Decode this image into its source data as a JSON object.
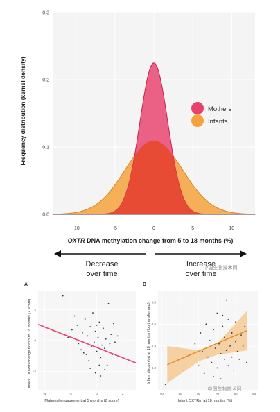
{
  "chart_data": [
    {
      "type": "area",
      "xlabel_italic": "OXTR",
      "xlabel_rest": " DNA methylation change from 5 to 18 months (%)",
      "ylabel": "Frequency distribution (kernel density)",
      "xlim": [
        -13,
        13
      ],
      "ylim": [
        0,
        0.3
      ],
      "x_ticks": [
        -10,
        -5,
        0,
        5,
        10
      ],
      "y_ticks": [
        0.0,
        0.1,
        0.2,
        0.3
      ],
      "y_tick_labels": [
        "0.0",
        "0.1",
        "0.2",
        "0.3"
      ],
      "legend_position": "right",
      "series": [
        {
          "name": "Mothers",
          "mean": 0,
          "sd": 1.8,
          "peak": 0.225,
          "color": "#e8416c"
        },
        {
          "name": "Infants",
          "mean": 0,
          "sd": 3.7,
          "peak": 0.109,
          "color": "#f5a23c"
        }
      ],
      "arrows": {
        "left_line1": "Decrease",
        "left_line2": "over time",
        "right_line1": "Increase",
        "right_line2": "over time"
      }
    },
    {
      "type": "scatter",
      "panel_label": "A",
      "xlabel": "Maternal engagement at 5 months (Z score)",
      "ylabel": "Infant OXTRm change from 5 to 18 months (Z score)",
      "xlim": [
        -4.5,
        3
      ],
      "ylim": [
        -3.2,
        3.2
      ],
      "x_ticks": [
        -4,
        -2,
        0,
        2
      ],
      "y_ticks": [
        -2,
        0,
        2
      ],
      "fit_line": {
        "x": [
          -4.5,
          3
        ],
        "y": [
          1.05,
          -1.45
        ],
        "color": "#e8416c"
      },
      "points": [
        [
          -2.6,
          2.9
        ],
        [
          -1.9,
          0.7
        ],
        [
          -1.7,
          1.6
        ],
        [
          -1.5,
          1.0
        ],
        [
          -1.4,
          -0.2
        ],
        [
          -1.2,
          -0.6
        ],
        [
          -1.1,
          0.5
        ],
        [
          -0.9,
          1.4
        ],
        [
          -0.8,
          -0.9
        ],
        [
          -0.7,
          0.3
        ],
        [
          -0.6,
          -1.3
        ],
        [
          -0.5,
          0.9
        ],
        [
          -0.4,
          -0.4
        ],
        [
          -0.3,
          1.8
        ],
        [
          -0.2,
          -0.1
        ],
        [
          -0.1,
          0.6
        ],
        [
          0.0,
          -0.7
        ],
        [
          0.1,
          0.2
        ],
        [
          0.2,
          1.2
        ],
        [
          0.3,
          -1.1
        ],
        [
          0.4,
          -0.3
        ],
        [
          0.5,
          0.8
        ],
        [
          0.6,
          -0.5
        ],
        [
          0.7,
          0.1
        ],
        [
          0.8,
          -1.6
        ],
        [
          0.9,
          2.4
        ],
        [
          1.0,
          -0.2
        ],
        [
          1.1,
          0.4
        ],
        [
          1.2,
          -0.9
        ],
        [
          1.3,
          1.1
        ],
        [
          1.4,
          -0.1
        ],
        [
          -0.1,
          -2.1
        ],
        [
          0.3,
          -2.3
        ],
        [
          0.6,
          -1.9
        ],
        [
          -2.2,
          0.2
        ],
        [
          -1.0,
          -0.8
        ],
        [
          0.2,
          -1.6
        ],
        [
          1.6,
          0.3
        ],
        [
          0.0,
          1.0
        ],
        [
          -0.5,
          -1.8
        ]
      ]
    },
    {
      "type": "scatter",
      "panel_label": "B",
      "xlabel": "Infant OXTRm at 18 months (%)",
      "ylabel": "Infant discomfort at 18 months (log transformed)",
      "xlim": [
        38,
        92
      ],
      "ylim": [
        0,
        0.9
      ],
      "x_ticks": [
        40,
        50,
        60,
        70,
        80,
        90
      ],
      "y_ticks": [
        0.2,
        0.4,
        0.6,
        0.8
      ],
      "fit_line": {
        "x": [
          43,
          86
        ],
        "y": [
          0.23,
          0.54
        ],
        "color": "#e48a26"
      },
      "fit_band": {
        "x": [
          43,
          60,
          70,
          86
        ],
        "lower": [
          0.06,
          0.26,
          0.32,
          0.36
        ],
        "upper": [
          0.4,
          0.36,
          0.42,
          0.72
        ]
      },
      "points": [
        [
          42,
          0.05
        ],
        [
          52,
          0.18
        ],
        [
          55,
          0.32
        ],
        [
          58,
          0.42
        ],
        [
          60,
          0.22
        ],
        [
          61,
          0.52
        ],
        [
          62,
          0.35
        ],
        [
          63,
          0.15
        ],
        [
          64,
          0.6
        ],
        [
          65,
          0.3
        ],
        [
          66,
          0.45
        ],
        [
          67,
          0.25
        ],
        [
          68,
          0.55
        ],
        [
          69,
          0.38
        ],
        [
          70,
          0.2
        ],
        [
          70,
          0.7
        ],
        [
          71,
          0.42
        ],
        [
          72,
          0.33
        ],
        [
          73,
          0.58
        ],
        [
          74,
          0.28
        ],
        [
          74,
          0.48
        ],
        [
          75,
          0.36
        ],
        [
          76,
          0.64
        ],
        [
          76,
          0.22
        ],
        [
          77,
          0.4
        ],
        [
          78,
          0.52
        ],
        [
          78,
          0.3
        ],
        [
          79,
          0.18
        ],
        [
          80,
          0.44
        ],
        [
          80,
          0.62
        ],
        [
          81,
          0.35
        ],
        [
          82,
          0.28
        ],
        [
          83,
          0.5
        ],
        [
          84,
          0.4
        ],
        [
          85,
          0.58
        ],
        [
          86,
          0.25
        ],
        [
          72,
          0.1
        ],
        [
          68,
          0.12
        ],
        [
          75,
          0.82
        ],
        [
          73,
          0.68
        ]
      ]
    }
  ],
  "watermark": "中国生物技术网"
}
